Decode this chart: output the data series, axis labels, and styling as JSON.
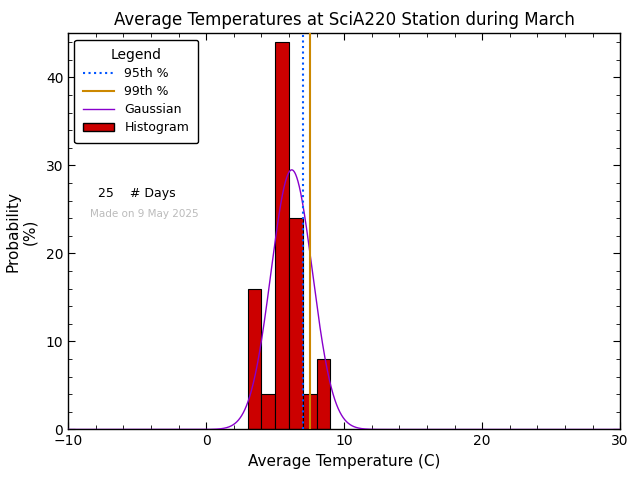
{
  "title": "Average Temperatures at SciA220 Station during March",
  "xlabel": "Average Temperature (C)",
  "ylabel_line1": "Probability",
  "ylabel_line2": "(%)",
  "xlim": [
    -10,
    30
  ],
  "ylim": [
    0,
    45
  ],
  "xticks": [
    -10,
    0,
    10,
    20,
    30
  ],
  "yticks": [
    0,
    10,
    20,
    30,
    40
  ],
  "bin_edges": [
    3,
    4,
    5,
    6,
    7,
    8,
    9,
    10
  ],
  "bin_heights": [
    16.0,
    4.0,
    44.0,
    24.0,
    4.0,
    8.0,
    0.0
  ],
  "bar_color": "#cc0000",
  "bar_edgecolor": "#000000",
  "gaussian_color": "#8800cc",
  "gaussian_mean": 6.2,
  "gaussian_std": 1.5,
  "gaussian_peak": 29.5,
  "percentile_95": 7.0,
  "percentile_99": 7.5,
  "p95_color": "#0055ff",
  "p99_color": "#cc8800",
  "n_days": 25,
  "watermark": "Made on 9 May 2025",
  "watermark_color": "#bbbbbb",
  "background_color": "#ffffff",
  "title_fontsize": 12,
  "axis_label_fontsize": 11,
  "tick_fontsize": 10,
  "legend_fontsize": 9
}
